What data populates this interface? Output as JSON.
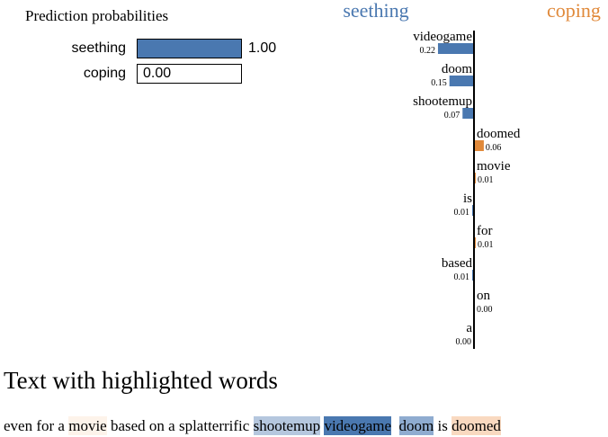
{
  "prediction": {
    "title": "Prediction probabilities",
    "items": [
      {
        "label": "seething",
        "value": 1.0,
        "value_text": "1.00",
        "color": "#4a78b0"
      },
      {
        "label": "coping",
        "value": 0.0,
        "value_text": "0.00",
        "color": "#e0893a"
      }
    ]
  },
  "chart_data": {
    "type": "bar",
    "orientation": "horizontal",
    "class_labels": {
      "left": {
        "text": "seething",
        "color": "#4a78b0"
      },
      "right": {
        "text": "coping",
        "color": "#e0893a"
      }
    },
    "features": [
      {
        "word": "videogame",
        "value": 0.22,
        "value_text": "0.22",
        "side": "left"
      },
      {
        "word": "doom",
        "value": 0.15,
        "value_text": "0.15",
        "side": "left"
      },
      {
        "word": "shootemup",
        "value": 0.07,
        "value_text": "0.07",
        "side": "left"
      },
      {
        "word": "doomed",
        "value": 0.06,
        "value_text": "0.06",
        "side": "right"
      },
      {
        "word": "movie",
        "value": 0.01,
        "value_text": "0.01",
        "side": "right"
      },
      {
        "word": "is",
        "value": 0.01,
        "value_text": "0.01",
        "side": "left"
      },
      {
        "word": "for",
        "value": 0.01,
        "value_text": "0.01",
        "side": "right"
      },
      {
        "word": "based",
        "value": 0.01,
        "value_text": "0.01",
        "side": "left"
      },
      {
        "word": "on",
        "value": 0.0,
        "value_text": "0.00",
        "side": "right"
      },
      {
        "word": "a",
        "value": 0.0,
        "value_text": "0.00",
        "side": "left"
      }
    ],
    "colors": {
      "left": "#4a78b0",
      "right": "#e0893a"
    }
  },
  "text_section": {
    "title": "Text with highlighted words",
    "tokens": [
      {
        "t": "even for a ",
        "hl": null
      },
      {
        "t": "movie",
        "hl": "#fdf3ea"
      },
      {
        "t": " based on a splatterrific ",
        "hl": null
      },
      {
        "t": "shootemup",
        "hl": "#b5c7de"
      },
      {
        "t": " ",
        "hl": null
      },
      {
        "t": "videogame",
        "hl": "#4a78b0"
      },
      {
        "t": "  ",
        "hl": null
      },
      {
        "t": "doom",
        "hl": "#8facd0"
      },
      {
        "t": " is ",
        "hl": null
      },
      {
        "t": "doomed",
        "hl": "#f9d9c0"
      }
    ]
  }
}
